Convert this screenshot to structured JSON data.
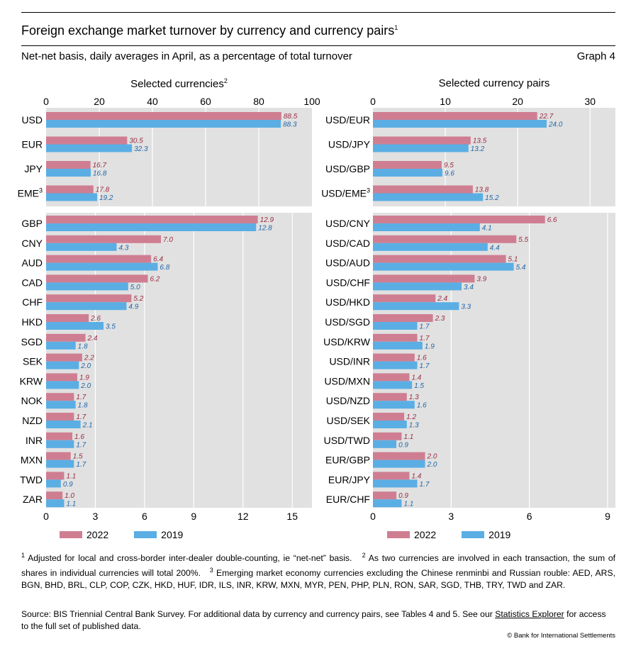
{
  "header": {
    "title": "Foreign exchange market turnover by currency and currency pairs",
    "title_sup": "1",
    "subtitle": "Net-net basis, daily averages in April, as a percentage of total turnover",
    "graph_no": "Graph 4"
  },
  "colors": {
    "y2022": "#cf7e92",
    "y2019": "#5aaee4",
    "plot_bg": "#e1e1e1",
    "label_2022": "#9b2b43",
    "label_2019": "#1f66a8"
  },
  "legend": {
    "y2022": "2022",
    "y2019": "2019"
  },
  "chart_data": [
    {
      "type": "bar",
      "orientation": "horizontal",
      "title": "Selected currencies",
      "title_sup": "2",
      "series": [
        {
          "name": "2022"
        },
        {
          "name": "2019"
        }
      ],
      "top_panel": {
        "xlim": [
          0,
          100
        ],
        "ticks": [
          "0",
          "20",
          "40",
          "60",
          "80",
          "100"
        ],
        "categories": [
          "USD",
          "EUR",
          "JPY",
          "EME"
        ],
        "category_sup": [
          "",
          "",
          "",
          "3"
        ],
        "v2022": [
          88.5,
          30.5,
          16.7,
          17.8
        ],
        "v2019": [
          88.3,
          32.3,
          16.8,
          19.2
        ]
      },
      "bottom_panel": {
        "xlim": [
          0,
          16.2
        ],
        "ticks": [
          "0",
          "3",
          "6",
          "9",
          "12",
          "15"
        ],
        "categories": [
          "GBP",
          "CNY",
          "AUD",
          "CAD",
          "CHF",
          "HKD",
          "SGD",
          "SEK",
          "KRW",
          "NOK",
          "NZD",
          "INR",
          "MXN",
          "TWD",
          "ZAR"
        ],
        "v2022": [
          12.9,
          7.0,
          6.4,
          6.2,
          5.2,
          2.6,
          2.4,
          2.2,
          1.9,
          1.7,
          1.7,
          1.6,
          1.5,
          1.1,
          1.0
        ],
        "v2019": [
          12.8,
          4.3,
          6.8,
          5.0,
          4.9,
          3.5,
          1.8,
          2.0,
          2.0,
          1.8,
          2.1,
          1.7,
          1.7,
          0.9,
          1.1
        ]
      }
    },
    {
      "type": "bar",
      "orientation": "horizontal",
      "title": "Selected currency pairs",
      "title_sup": "",
      "series": [
        {
          "name": "2022"
        },
        {
          "name": "2019"
        }
      ],
      "top_panel": {
        "xlim": [
          0,
          33.5
        ],
        "ticks": [
          "0",
          "10",
          "20",
          "30"
        ],
        "categories": [
          "USD/EUR",
          "USD/JPY",
          "USD/GBP",
          "USD/EME"
        ],
        "category_sup": [
          "",
          "",
          "",
          "3"
        ],
        "v2022": [
          22.7,
          13.5,
          9.5,
          13.8
        ],
        "v2019": [
          24.0,
          13.2,
          9.6,
          15.2
        ]
      },
      "bottom_panel": {
        "xlim": [
          0,
          9.3
        ],
        "ticks": [
          "0",
          "3",
          "6",
          "9"
        ],
        "categories": [
          "USD/CNY",
          "USD/CAD",
          "USD/AUD",
          "USD/CHF",
          "USD/HKD",
          "USD/SGD",
          "USD/KRW",
          "USD/INR",
          "USD/MXN",
          "USD/NZD",
          "USD/SEK",
          "USD/TWD",
          "EUR/GBP",
          "EUR/JPY",
          "EUR/CHF"
        ],
        "v2022": [
          6.6,
          5.5,
          5.1,
          3.9,
          2.4,
          2.3,
          1.7,
          1.6,
          1.4,
          1.3,
          1.2,
          1.1,
          2.0,
          1.4,
          0.9
        ],
        "v2019": [
          4.1,
          4.4,
          5.4,
          3.4,
          3.3,
          1.7,
          1.9,
          1.7,
          1.5,
          1.6,
          1.3,
          0.9,
          2.0,
          1.7,
          1.1
        ]
      }
    }
  ],
  "footnotes": {
    "n1_mark": "1",
    "n1": " Adjusted for local and cross-border inter-dealer double-counting, ie “net-net” basis.",
    "n2_mark": "2",
    "n2": " As two currencies are involved in each transaction, the sum of shares in individual currencies will total 200%.",
    "n3_mark": "3",
    "n3": " Emerging market economy currencies excluding the Chinese renminbi and Russian rouble: AED, ARS, BGN, BHD, BRL, CLP, COP, CZK, HKD, HUF, IDR, ILS, INR, KRW, MXN, MYR, PEN, PHP, PLN, RON, SAR, SGD, THB, TRY, TWD and ZAR."
  },
  "source": {
    "text": "Source: BIS Triennial Central Bank Survey. For additional data by currency and currency pairs, see Tables 4 and 5. See our ",
    "link": "Statistics Explorer",
    "text2": " for access to the full set of published data."
  },
  "copyright": "© Bank for International Settlements"
}
